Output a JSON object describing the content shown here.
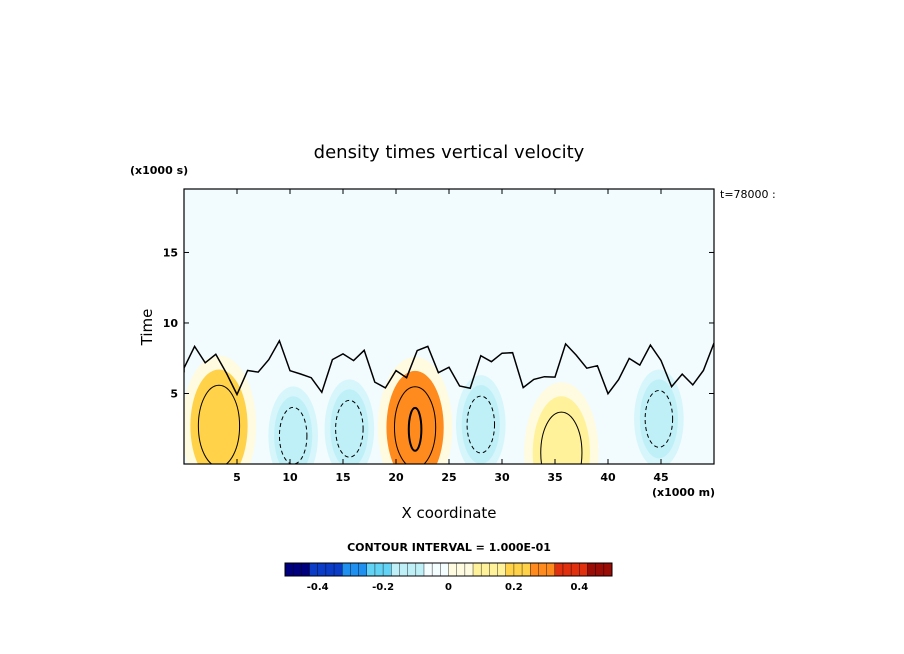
{
  "chart_data": {
    "type": "heatmap",
    "title": "density times vertical velocity",
    "xlabel": "X coordinate",
    "ylabel": "Time",
    "x_unit": "(x1000 m)",
    "y_unit": "(x1000 s)",
    "xlim": [
      0,
      50
    ],
    "ylim": [
      0,
      19.5
    ],
    "x_ticks": [
      5,
      10,
      15,
      20,
      25,
      30,
      35,
      40,
      45
    ],
    "y_ticks": [
      5,
      10,
      15
    ],
    "annotation": "t=78000 :",
    "contour_interval": "CONTOUR INTERVAL = 1.000E-01",
    "colorbar": {
      "range": [
        -0.5,
        0.5
      ],
      "tick_values": [
        -0.4,
        -0.2,
        0,
        0.2,
        0.4
      ],
      "tick_labels": [
        "-0.4",
        "-0.2",
        "0",
        "0.2",
        "0.4"
      ],
      "colors_low_to_high": [
        "#00007f",
        "#0a3cc8",
        "#1f8ff0",
        "#63d3f5",
        "#bff0f8",
        "#f4fdff",
        "#fffbe0",
        "#fff29a",
        "#ffd24a",
        "#ff8a1e",
        "#e0300e",
        "#9a0c06"
      ]
    },
    "features": [
      {
        "x": 3.3,
        "t": 2.7,
        "value": 0.22,
        "sign": "positive"
      },
      {
        "x": 21.8,
        "t": 2.6,
        "value": 0.3,
        "sign": "positive"
      },
      {
        "x": 35.6,
        "t": 0.8,
        "value": 0.12,
        "sign": "positive"
      },
      {
        "x": 10.3,
        "t": 2.0,
        "value": -0.13,
        "sign": "negative"
      },
      {
        "x": 15.6,
        "t": 2.5,
        "value": -0.13,
        "sign": "negative"
      },
      {
        "x": 28.0,
        "t": 2.8,
        "value": -0.15,
        "sign": "negative"
      },
      {
        "x": 44.8,
        "t": 3.2,
        "value": -0.16,
        "sign": "negative"
      }
    ]
  }
}
